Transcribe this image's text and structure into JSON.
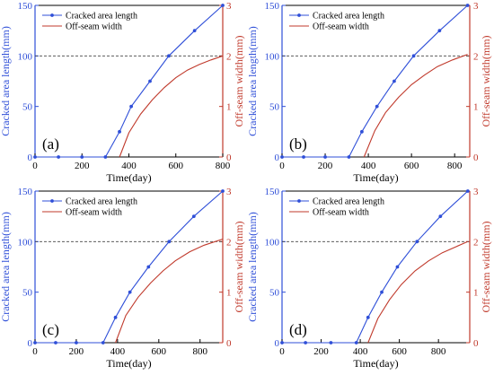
{
  "colors": {
    "left": "#2f4fd8",
    "right": "#c0392b",
    "axis": "#000000",
    "refline": "#444444"
  },
  "chart_data": [
    {
      "type": "line",
      "panel_label": "(a)",
      "xlabel": "Time(day)",
      "ylabel_left": "Cracked area length(mm)",
      "ylabel_right": "Off-seam width(mm)",
      "xlim": [
        0,
        800
      ],
      "xticks": [
        "0",
        "200",
        "400",
        "600",
        "800"
      ],
      "ylim_left": [
        0,
        150
      ],
      "yticks_left": [
        "0",
        "50",
        "100",
        "150"
      ],
      "ylim_right": [
        0,
        3
      ],
      "yticks_right": [
        "0",
        "1",
        "2",
        "3"
      ],
      "reference_line": 100,
      "series": [
        {
          "name": "Cracked area length",
          "axis": "left",
          "marker": "dot",
          "x": [
            0,
            100,
            200,
            300,
            360,
            410,
            490,
            570,
            680,
            800
          ],
          "y": [
            0,
            0,
            0,
            0,
            25,
            50,
            75,
            100,
            125,
            150
          ]
        },
        {
          "name": "Off-seam width",
          "axis": "right",
          "marker": "none",
          "x": [
            360,
            400,
            450,
            500,
            550,
            600,
            650,
            700,
            750,
            800
          ],
          "y": [
            0,
            0.48,
            0.85,
            1.13,
            1.37,
            1.57,
            1.72,
            1.83,
            1.92,
            2.0
          ]
        }
      ]
    },
    {
      "type": "line",
      "panel_label": "(b)",
      "xlabel": "Time(day)",
      "ylabel_left": "Cracked area length(mm)",
      "ylabel_right": "Off-seam width(mm)",
      "xlim": [
        0,
        870
      ],
      "xticks": [
        "0",
        "200",
        "400",
        "600",
        "800"
      ],
      "ylim_left": [
        0,
        150
      ],
      "yticks_left": [
        "0",
        "50",
        "100",
        "150"
      ],
      "ylim_right": [
        0,
        3
      ],
      "yticks_right": [
        "0",
        "1",
        "2",
        "3"
      ],
      "reference_line": 100,
      "series": [
        {
          "name": "Cracked area length",
          "axis": "left",
          "marker": "dot",
          "x": [
            0,
            100,
            200,
            310,
            370,
            440,
            520,
            610,
            730,
            860
          ],
          "y": [
            0,
            0,
            0,
            0,
            25,
            50,
            75,
            100,
            125,
            150
          ]
        },
        {
          "name": "Off-seam width",
          "axis": "right",
          "marker": "none",
          "x": [
            380,
            430,
            480,
            540,
            600,
            660,
            720,
            790,
            860
          ],
          "y": [
            0,
            0.52,
            0.88,
            1.18,
            1.43,
            1.62,
            1.79,
            1.92,
            2.03
          ]
        }
      ]
    },
    {
      "type": "line",
      "panel_label": "(c)",
      "xlabel": "Time(day)",
      "ylabel_left": "Cracked area length(mm)",
      "ylabel_right": "Off-seam width(mm)",
      "xlim": [
        0,
        910
      ],
      "xticks": [
        "0",
        "200",
        "400",
        "600",
        "800"
      ],
      "ylim_left": [
        0,
        150
      ],
      "yticks_left": [
        "0",
        "50",
        "100",
        "150"
      ],
      "ylim_right": [
        0,
        3
      ],
      "yticks_right": [
        "0",
        "1",
        "2",
        "3"
      ],
      "reference_line": 100,
      "series": [
        {
          "name": "Cracked area length",
          "axis": "left",
          "marker": "dot",
          "x": [
            0,
            100,
            200,
            330,
            390,
            460,
            550,
            650,
            770,
            910
          ],
          "y": [
            0,
            0,
            0,
            0,
            25,
            50,
            75,
            100,
            125,
            150
          ]
        },
        {
          "name": "Off-seam width",
          "axis": "right",
          "marker": "none",
          "x": [
            390,
            440,
            500,
            560,
            620,
            680,
            750,
            820,
            910
          ],
          "y": [
            0,
            0.54,
            0.9,
            1.18,
            1.42,
            1.62,
            1.8,
            1.93,
            2.05
          ]
        }
      ]
    },
    {
      "type": "line",
      "panel_label": "(d)",
      "xlabel": "Time(day)",
      "ylabel_left": "Cracked area length(mm)",
      "ylabel_right": "Off-seam width(mm)",
      "xlim": [
        0,
        960
      ],
      "xticks": [
        "0",
        "200",
        "400",
        "600",
        "800"
      ],
      "ylim_left": [
        0,
        150
      ],
      "yticks_left": [
        "0",
        "50",
        "100",
        "150"
      ],
      "ylim_right": [
        0,
        3
      ],
      "yticks_right": [
        "0",
        "1",
        "2",
        "3"
      ],
      "reference_line": 100,
      "series": [
        {
          "name": "Cracked area length",
          "axis": "left",
          "marker": "dot",
          "x": [
            0,
            120,
            250,
            380,
            440,
            510,
            590,
            690,
            810,
            950
          ],
          "y": [
            0,
            0,
            0,
            0,
            25,
            50,
            75,
            100,
            125,
            150
          ]
        },
        {
          "name": "Off-seam width",
          "axis": "right",
          "marker": "none",
          "x": [
            440,
            490,
            550,
            610,
            680,
            750,
            820,
            890,
            950
          ],
          "y": [
            0,
            0.48,
            0.85,
            1.15,
            1.42,
            1.62,
            1.78,
            1.9,
            2.0
          ]
        }
      ]
    }
  ]
}
